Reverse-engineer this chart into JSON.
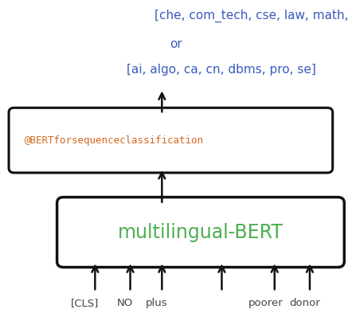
{
  "title_line1": "[che, com_tech, cse, law, math, Physics]",
  "title_line2": "or",
  "title_line3": "[ai, algo, ca, cn, dbms, pro, se]",
  "title_color": "#3B5BBE",
  "bert_box_label": "@BERTforsequenceclassification",
  "bert_box_color": "#D2691E",
  "bert_box_font": "monospace",
  "multilingual_label": "multilingual-BERT",
  "multilingual_color": "#4CAF50",
  "bottom_label_color": "#444444",
  "background_color": "#ffffff",
  "box_edge_color": "#111111",
  "arrow_color": "#111111",
  "figw": 4.42,
  "figh": 3.98,
  "dpi": 100
}
